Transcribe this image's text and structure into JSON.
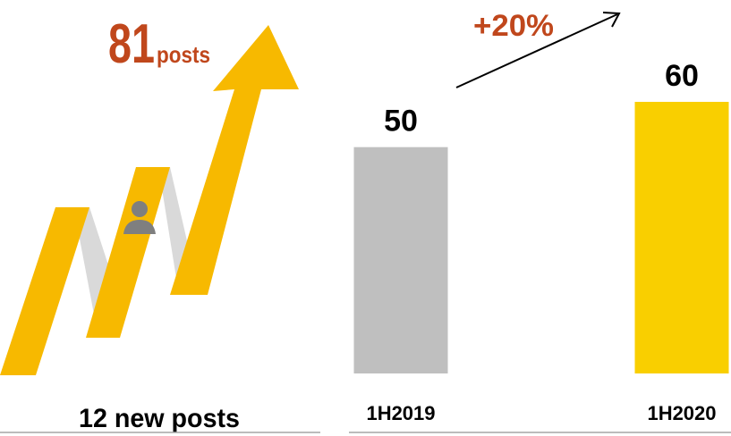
{
  "infographic": {
    "headline_value": 81,
    "headline_unit": "posts",
    "caption": "12 new posts"
  },
  "chart_data": {
    "type": "bar",
    "categories": [
      "1H2019",
      "1H2020"
    ],
    "values": [
      50,
      60
    ],
    "colors": [
      "#bfbfbf",
      "#f9cf00"
    ],
    "annotation": "+20%"
  }
}
